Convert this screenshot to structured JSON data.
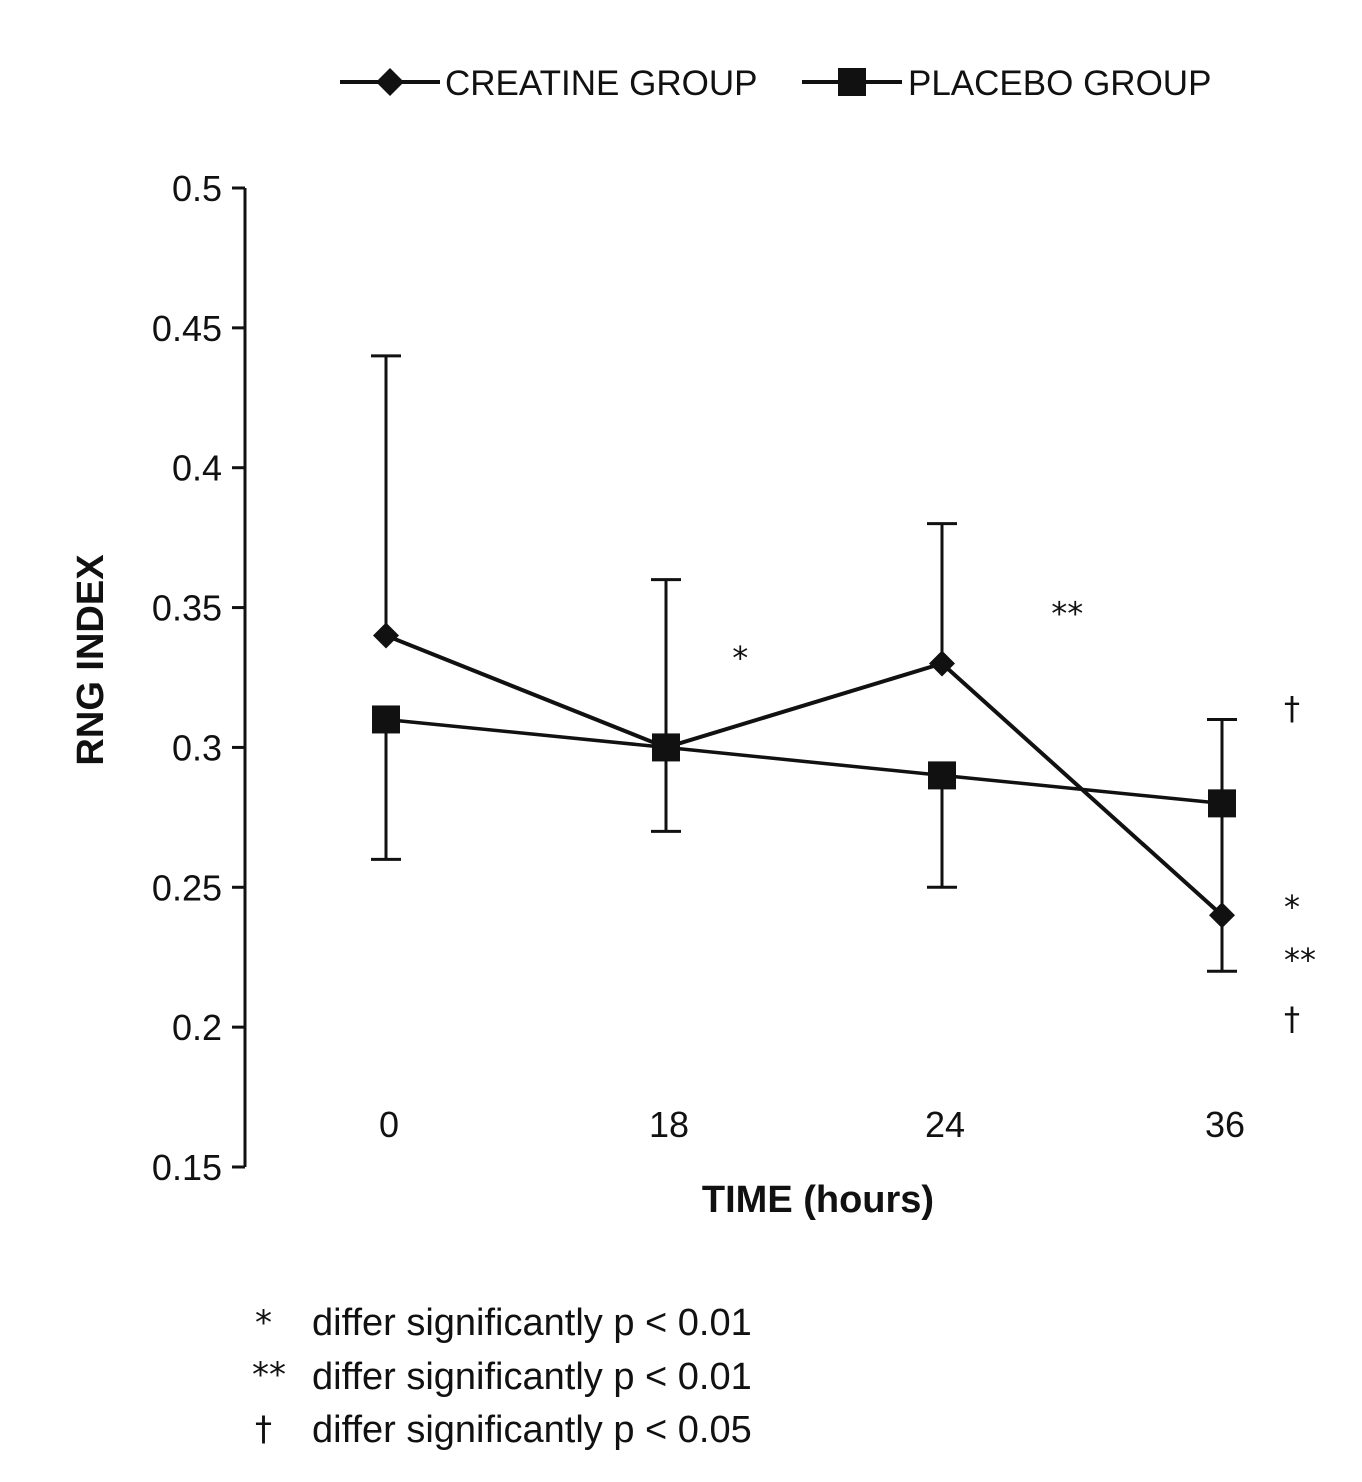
{
  "chart_data": {
    "type": "line",
    "title": "",
    "xlabel": "TIME (hours)",
    "ylabel": "RNG INDEX",
    "categories": [
      "0",
      "18",
      "24",
      "36"
    ],
    "ylim": [
      0.15,
      0.5
    ],
    "yticks": [
      "0.5",
      "0.45",
      "0.4",
      "0.35",
      "0.3",
      "0.25",
      "0.2",
      "0.15"
    ],
    "ytick_values": [
      0.5,
      0.45,
      0.4,
      0.35,
      0.3,
      0.25,
      0.2,
      0.15
    ],
    "grid": false,
    "legend_position": "top",
    "series": [
      {
        "name": "CREATINE GROUP",
        "marker": "diamond",
        "values": [
          0.34,
          0.3,
          0.33,
          0.24
        ],
        "error_upper": [
          0.44,
          0.36,
          0.38,
          0.31
        ],
        "error_lower": [
          null,
          null,
          null,
          0.22
        ]
      },
      {
        "name": "PLACEBO GROUP",
        "marker": "square",
        "values": [
          0.31,
          0.3,
          0.29,
          0.28
        ],
        "error_upper": [
          null,
          null,
          null,
          null
        ],
        "error_lower": [
          0.26,
          0.27,
          0.25,
          null
        ]
      }
    ],
    "annotations": [
      {
        "text": "*",
        "x_between": [
          "18",
          "24"
        ],
        "y": 0.333
      },
      {
        "text": "**",
        "x_between": [
          "24",
          "36"
        ],
        "y": 0.349
      },
      {
        "text": "†",
        "x_after": "36",
        "y": 0.315
      },
      {
        "text": "*",
        "x_after": "36",
        "y": 0.244
      },
      {
        "text": "**",
        "x_after": "36",
        "y": 0.225
      },
      {
        "text": "†",
        "x_after": "36",
        "y": 0.204
      }
    ],
    "footnotes": [
      {
        "symbol": "*",
        "text": "differ significantly p < 0.01"
      },
      {
        "symbol": "**",
        "text": "differ significantly p < 0.01"
      },
      {
        "symbol": "†",
        "text": "differ significantly p < 0.05"
      }
    ]
  }
}
